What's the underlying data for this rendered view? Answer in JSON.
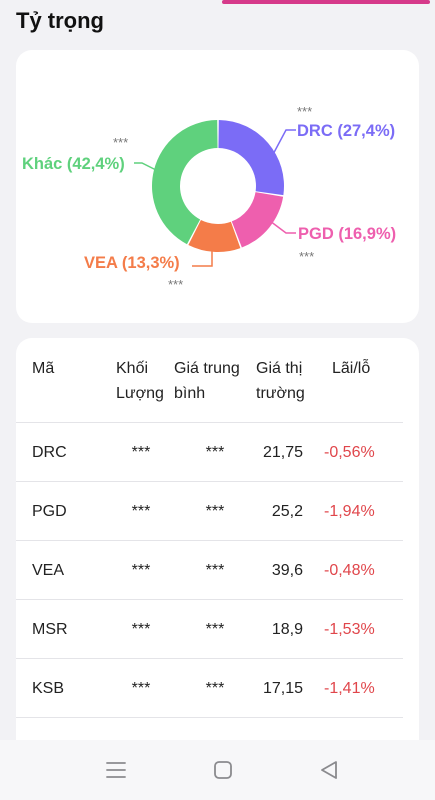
{
  "header": {
    "title": "Tỷ trọng"
  },
  "chart": {
    "type": "pie",
    "slices": [
      {
        "name": "DRC",
        "percent_label": "DRC (27,4%)",
        "value": 27.4,
        "color": "#7b6cf6",
        "masked": "***"
      },
      {
        "name": "PGD",
        "percent_label": "PGD (16,9%)",
        "value": 16.9,
        "color": "#ee5fae",
        "masked": "***"
      },
      {
        "name": "VEA",
        "percent_label": "VEA (13,3%)",
        "value": 13.3,
        "color": "#f47c49",
        "masked": "***"
      },
      {
        "name": "Khác",
        "percent_label": "Khác (42,4%)",
        "value": 42.4,
        "color": "#5fd17d",
        "masked": "***"
      }
    ]
  },
  "table": {
    "headers": {
      "ticker": "Mã",
      "volume_line1": "Khối",
      "volume_line2": "Lượng",
      "avg_line1": "Giá trung",
      "avg_line2": "bình",
      "market_line1": "Giá thị",
      "market_line2": "trường",
      "pl": "Lãi/lỗ"
    },
    "rows": [
      {
        "ticker": "DRC",
        "volume": "***",
        "avg_price": "***",
        "market_price": "21,75",
        "pl": "-0,56%"
      },
      {
        "ticker": "PGD",
        "volume": "***",
        "avg_price": "***",
        "market_price": "25,2",
        "pl": "-1,94%"
      },
      {
        "ticker": "VEA",
        "volume": "***",
        "avg_price": "***",
        "market_price": "39,6",
        "pl": "-0,48%"
      },
      {
        "ticker": "MSR",
        "volume": "***",
        "avg_price": "***",
        "market_price": "18,9",
        "pl": "-1,53%"
      },
      {
        "ticker": "KSB",
        "volume": "***",
        "avg_price": "***",
        "market_price": "17,15",
        "pl": "-1,41%"
      }
    ]
  },
  "nav": {
    "menu": "menu-lines-icon",
    "home": "home-square-icon",
    "back": "back-triangle-icon"
  }
}
